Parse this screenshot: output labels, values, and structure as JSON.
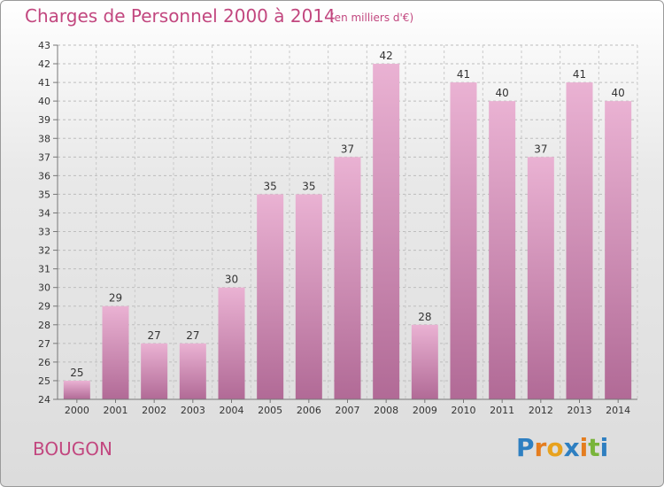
{
  "header": {
    "title": "Charges de Personnel 2000 à 2014",
    "subtitle": "(en milliers d'€)"
  },
  "footer": {
    "commune": "BOUGON",
    "logo": "Proxiti"
  },
  "colors": {
    "title": "#c2477f",
    "bar_light": "#eab2d3",
    "bar_dark": "#b16a96",
    "logo_letters": [
      "#2e7fc1",
      "#e57d1f",
      "#e8a21e",
      "#2e7fc1",
      "#e57d1f",
      "#79b43a",
      "#2e7fc1"
    ]
  },
  "chart_data": {
    "type": "bar",
    "title": "Charges de Personnel 2000 à 2014",
    "subtitle": "(en milliers d'€)",
    "categories": [
      "2000",
      "2001",
      "2002",
      "2003",
      "2004",
      "2005",
      "2006",
      "2007",
      "2008",
      "2009",
      "2010",
      "2011",
      "2012",
      "2013",
      "2014"
    ],
    "values": [
      25,
      29,
      27,
      27,
      30,
      35,
      35,
      37,
      42,
      28,
      41,
      40,
      37,
      41,
      40
    ],
    "ylim": [
      24,
      43
    ],
    "yticks": [
      24,
      25,
      26,
      27,
      28,
      29,
      30,
      31,
      32,
      33,
      34,
      35,
      36,
      37,
      38,
      39,
      40,
      41,
      42,
      43
    ],
    "grid": true,
    "xlabel": "",
    "ylabel": ""
  }
}
